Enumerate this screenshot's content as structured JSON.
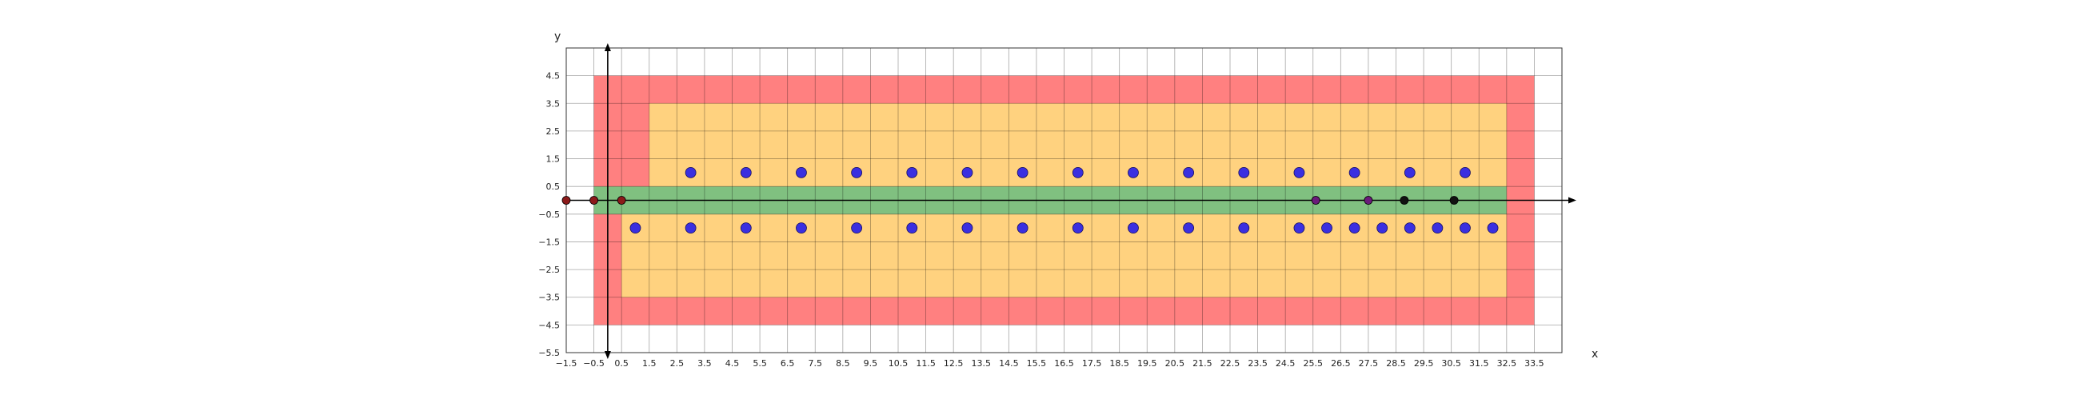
{
  "chart_data": {
    "type": "scatter",
    "title": "",
    "xlabel": "x",
    "ylabel": "y",
    "xlim": [
      -1.5,
      34.5
    ],
    "ylim": [
      -5.5,
      5.5
    ],
    "grid": true,
    "xticks": [
      "−1.5",
      "−0.5",
      "0.5",
      "1.5",
      "2.5",
      "3.5",
      "4.5",
      "5.5",
      "6.5",
      "7.5",
      "8.5",
      "9.5",
      "10.5",
      "11.5",
      "12.5",
      "13.5",
      "14.5",
      "15.5",
      "16.5",
      "17.5",
      "18.5",
      "19.5",
      "20.5",
      "21.5",
      "22.5",
      "23.5",
      "24.5",
      "25.5",
      "26.5",
      "27.5",
      "28.5",
      "29.5",
      "30.5",
      "31.5",
      "32.5",
      "33.5"
    ],
    "yticks": [
      "4.5",
      "3.5",
      "2.5",
      "1.5",
      "0.5",
      "−0.5",
      "−1.5",
      "−2.5",
      "−3.5",
      "−4.5",
      "−5.5"
    ],
    "regions": [
      {
        "color": "#ff8080",
        "x": [
          -0.5,
          33.5
        ],
        "y": [
          -4.5,
          4.5
        ]
      },
      {
        "color": "#ffd27f",
        "x": [
          1.5,
          32.5
        ],
        "y": [
          0.5,
          3.5
        ]
      },
      {
        "color": "#ffd27f",
        "x": [
          0.5,
          32.5
        ],
        "y": [
          -3.5,
          -0.5
        ]
      },
      {
        "color": "#80c080",
        "x": [
          -0.5,
          32.5
        ],
        "y": [
          -0.5,
          0.5
        ]
      }
    ],
    "series": [
      {
        "marker_color": "#3a2fe0",
        "points": [
          [
            3,
            1
          ],
          [
            5,
            1
          ],
          [
            7,
            1
          ],
          [
            9,
            1
          ],
          [
            11,
            1
          ],
          [
            13,
            1
          ],
          [
            15,
            1
          ],
          [
            17,
            1
          ],
          [
            19,
            1
          ],
          [
            21,
            1
          ],
          [
            23,
            1
          ],
          [
            25,
            1
          ],
          [
            27,
            1
          ],
          [
            29,
            1
          ],
          [
            31,
            1
          ],
          [
            1,
            -1
          ],
          [
            3,
            -1
          ],
          [
            5,
            -1
          ],
          [
            7,
            -1
          ],
          [
            9,
            -1
          ],
          [
            11,
            -1
          ],
          [
            13,
            -1
          ],
          [
            15,
            -1
          ],
          [
            17,
            -1
          ],
          [
            19,
            -1
          ],
          [
            21,
            -1
          ],
          [
            23,
            -1
          ],
          [
            25,
            -1
          ],
          [
            26,
            -1
          ],
          [
            27,
            -1
          ],
          [
            28,
            -1
          ],
          [
            29,
            -1
          ],
          [
            30,
            -1
          ],
          [
            31,
            -1
          ],
          [
            32,
            -1
          ]
        ]
      },
      {
        "marker_color": "#8b1a1a",
        "points": [
          [
            -1.5,
            0
          ],
          [
            -0.5,
            0
          ],
          [
            0.5,
            0
          ]
        ]
      },
      {
        "marker_color": "#6a1b7a",
        "points": [
          [
            25.6,
            0
          ],
          [
            27.5,
            0
          ]
        ]
      },
      {
        "marker_color": "#111111",
        "points": [
          [
            28.8,
            0
          ],
          [
            30.6,
            0
          ]
        ]
      }
    ]
  }
}
